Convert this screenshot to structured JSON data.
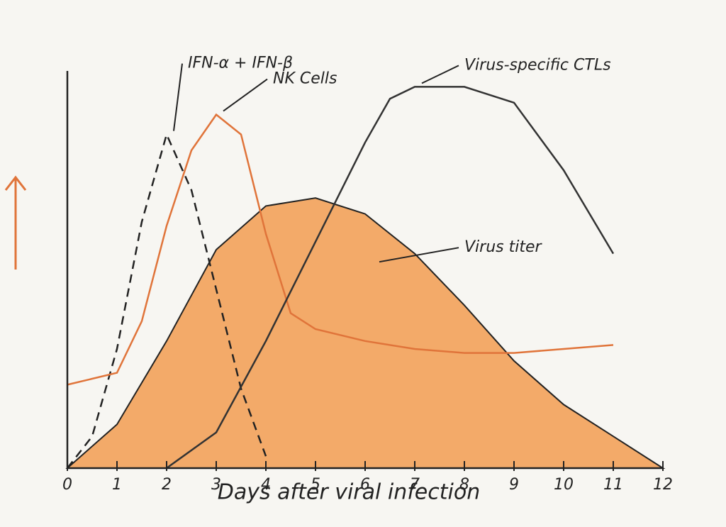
{
  "chart_data": {
    "type": "line",
    "x_label": "Days after viral infection",
    "xlim": [
      0,
      12
    ],
    "xticks": [
      0,
      1,
      2,
      3,
      4,
      5,
      6,
      7,
      8,
      9,
      10,
      11,
      12
    ],
    "ylim": [
      0,
      100
    ],
    "series": [
      {
        "name": "Virus titer",
        "color": "#f2a25a",
        "fill": true,
        "x": [
          0,
          1,
          2,
          3,
          4,
          5,
          6,
          7,
          8,
          9,
          10,
          11,
          12
        ],
        "values": [
          0,
          11,
          32,
          55,
          66,
          68,
          64,
          54,
          41,
          27,
          16,
          8,
          0
        ]
      },
      {
        "name": "IFN-α + IFN-β",
        "color": "#222222",
        "dashed": true,
        "x": [
          0,
          0.5,
          1,
          1.5,
          2,
          2.5,
          3,
          3.5,
          4
        ],
        "values": [
          0,
          8,
          30,
          62,
          84,
          70,
          45,
          20,
          3
        ]
      },
      {
        "name": "NK Cells",
        "color": "#e0743a",
        "x": [
          0,
          1,
          1.5,
          2,
          2.5,
          3,
          3.5,
          4,
          4.5,
          5,
          6,
          7,
          8,
          9,
          10,
          11
        ],
        "values": [
          21,
          24,
          37,
          61,
          80,
          89,
          84,
          59,
          39,
          35,
          32,
          30,
          29,
          29,
          30,
          31
        ]
      },
      {
        "name": "Virus-specific CTLs",
        "color": "#333333",
        "x": [
          2,
          3,
          4,
          5,
          6,
          6.5,
          7,
          8,
          9,
          10,
          11
        ],
        "values": [
          0,
          9,
          32,
          57,
          82,
          93,
          96,
          96,
          92,
          75,
          54
        ]
      }
    ]
  }
}
